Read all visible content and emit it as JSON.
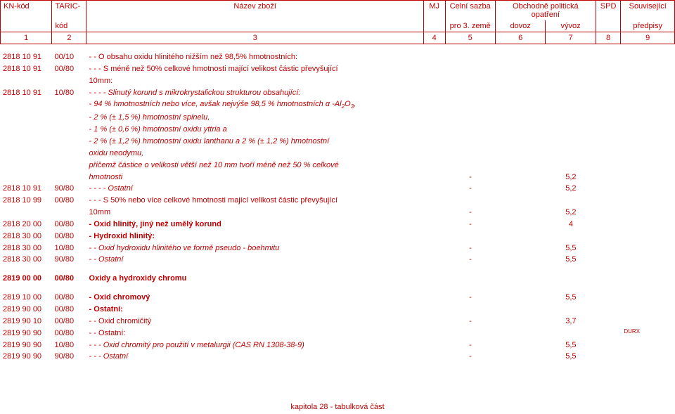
{
  "header": {
    "r1": {
      "kn": "KN-kód",
      "taric": "TARIC-",
      "nazev": "Název zboží",
      "mj": "MJ",
      "celni": "Celní sazba",
      "obch": "Obchodně politická opatření",
      "spd": "SPD",
      "souv": "Související"
    },
    "r2": {
      "kod": "kód",
      "pro3": "pro 3. země",
      "dovoz": "dovoz",
      "vyvoz": "vývoz",
      "predpisy": "předpisy"
    },
    "r3": {
      "c1": "1",
      "c2": "2",
      "c3": "3",
      "c4": "4",
      "c5": "5",
      "c6": "6",
      "c7": "7",
      "c8": "8",
      "c9": "9"
    }
  },
  "rows": [
    {
      "kn": "2818 10 91",
      "taric": "00/10",
      "text": "- - O obsahu oxidu hlinitého nižším než 98,5% hmotnostních:",
      "c5": "",
      "c7": ""
    },
    {
      "kn": "2818 10 91",
      "taric": "00/80",
      "text": "- - - S méně než 50% celkové hmotnosti mající velikost částic převyšující",
      "c5": "",
      "c7": ""
    },
    {
      "kn": "",
      "taric": "",
      "text": "10mm:",
      "c5": "",
      "c7": ""
    },
    {
      "kn": "2818 10 91",
      "taric": "10/80",
      "text": "- - - - Slinutý korund s mikrokrystalickou strukturou obsahující:",
      "italic": true,
      "c5": "",
      "c7": ""
    },
    {
      "kn": "",
      "taric": "",
      "text": "- 94 % hmotnostních nebo více, avšak nejvýše 98,5 % hmotnostních α -Al",
      "sub": "2",
      "text2": "O",
      "sub2": "3",
      "text3": ",",
      "italic": true,
      "c5": "",
      "c7": ""
    },
    {
      "kn": "",
      "taric": "",
      "text": "- 2 % (± 1,5 %) hmotnostní spinelu,",
      "italic": true,
      "c5": "",
      "c7": ""
    },
    {
      "kn": "",
      "taric": "",
      "text": "- 1 % (± 0,6 %) hmotnostní oxidu yttria a",
      "italic": true,
      "c5": "",
      "c7": ""
    },
    {
      "kn": "",
      "taric": "",
      "text": "- 2 % (± 1,2 %) hmotnostní oxidu lanthanu a 2 % (± 1,2 %) hmotnostní",
      "italic": true,
      "c5": "",
      "c7": ""
    },
    {
      "kn": "",
      "taric": "",
      "text": "oxidu neodymu,",
      "italic": true,
      "c5": "",
      "c7": ""
    },
    {
      "kn": "",
      "taric": "",
      "text": "přičemž částice o velikosti větší než 10 mm tvoří méně než 50 % celkové",
      "italic": true,
      "c5": "",
      "c7": ""
    },
    {
      "kn": "",
      "taric": "",
      "text": "hmotnosti",
      "italic": true,
      "c5": "-",
      "c7": "5,2"
    },
    {
      "kn": "2818 10 91",
      "taric": "90/80",
      "text": "- - - - Ostatní",
      "italic": true,
      "c5": "-",
      "c7": "5,2"
    },
    {
      "kn": "2818 10 99",
      "taric": "00/80",
      "text": "- - - S 50% nebo více celkové hmotnosti mající velikost částic převyšující",
      "c5": "",
      "c7": ""
    },
    {
      "kn": "",
      "taric": "",
      "text": "10mm",
      "c5": "-",
      "c7": "5,2"
    },
    {
      "kn": "2818 20 00",
      "taric": "00/80",
      "text": "- Oxid hlinitý, jiný než umělý korund",
      "bold": true,
      "c5": "-",
      "c7": "4"
    },
    {
      "kn": "2818 30 00",
      "taric": "00/80",
      "text": "- Hydroxid hlinitý:",
      "bold": true,
      "c5": "",
      "c7": ""
    },
    {
      "kn": "2818 30 00",
      "taric": "10/80",
      "text": "- - Oxid hydroxidu hlinitého ve formě pseudo - boehmitu",
      "italic": true,
      "c5": "-",
      "c7": "5,5"
    },
    {
      "kn": "2818 30 00",
      "taric": "90/80",
      "text": "- - Ostatní",
      "italic": true,
      "c5": "-",
      "c7": "5,5"
    }
  ],
  "section": {
    "kn": "2819 00 00",
    "taric": "00/80",
    "text": "Oxidy a hydroxidy chromu"
  },
  "rows2": [
    {
      "kn": "2819 10 00",
      "taric": "00/80",
      "text": "- Oxid chromový",
      "bold": true,
      "c5": "-",
      "c7": "5,5",
      "c9": ""
    },
    {
      "kn": "2819 90 00",
      "taric": "00/80",
      "text": "- Ostatní:",
      "bold": true,
      "c5": "",
      "c7": "",
      "c9": ""
    },
    {
      "kn": "2819 90 10",
      "taric": "00/80",
      "text": "- - Oxid chromičitý",
      "c5": "-",
      "c7": "3,7",
      "c9": ""
    },
    {
      "kn": "2819 90 90",
      "taric": "00/80",
      "text": "- - Ostatní:",
      "c5": "",
      "c7": "",
      "c9": "DURX"
    },
    {
      "kn": "2819 90 90",
      "taric": "10/80",
      "text": "- - - Oxid chromitý pro použití v metalurgii (CAS RN 1308-38-9)",
      "italic": true,
      "c5": "-",
      "c7": "5,5",
      "c9": ""
    },
    {
      "kn": "2819 90 90",
      "taric": "90/80",
      "text": "- - - Ostatní",
      "italic": true,
      "c5": "-",
      "c7": "5,5",
      "c9": ""
    }
  ],
  "footer": "kapitola 28 - tabulková část"
}
